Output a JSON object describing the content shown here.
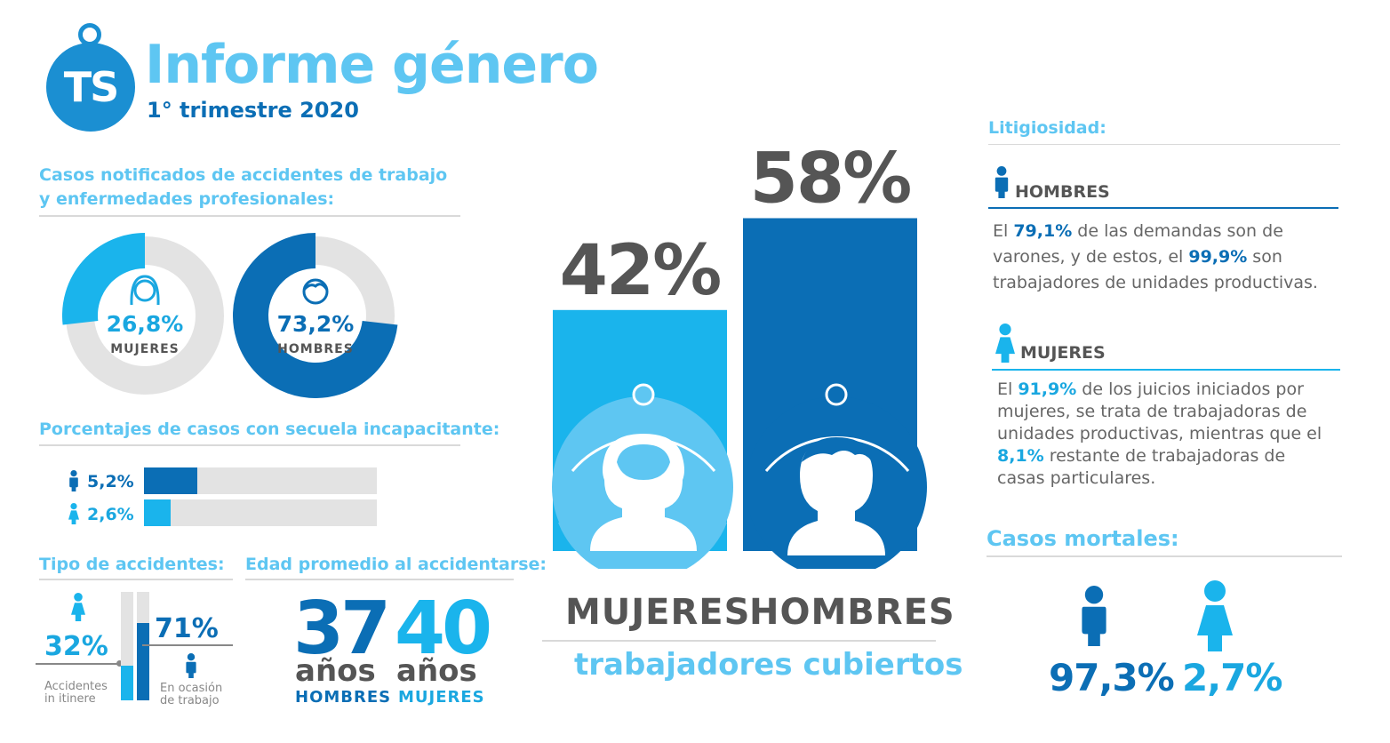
{
  "header": {
    "logo": "TS",
    "title": "Informe género",
    "subtitle": "1° trimestre 2020"
  },
  "colors": {
    "light_blue": "#1ab4ec",
    "dark_blue": "#0b6eb5",
    "title_blue": "#5ec6f2",
    "grey_track": "#e3e3e3",
    "text_grey": "#555555"
  },
  "casos": {
    "title_line1": "Casos notificados de accidentes de trabajo",
    "title_line2": "y enfermedades profesionales:",
    "mujeres": {
      "pct": "26,8%",
      "label": "MUJERES",
      "value": 26.8,
      "icon": "woman-face-icon"
    },
    "hombres": {
      "pct": "73,2%",
      "label": "HOMBRES",
      "value": 73.2,
      "icon": "man-face-icon"
    }
  },
  "secuela": {
    "title": "Porcentajes de casos con secuela incapacitante:",
    "hombres": {
      "pct": "5,2%",
      "value": 5.2,
      "icon": "man-icon"
    },
    "mujeres": {
      "pct": "2,6%",
      "value": 2.6,
      "icon": "woman-icon"
    }
  },
  "tipo": {
    "title": "Tipo de accidentes:",
    "itinere": {
      "pct": "32%",
      "value": 32,
      "line1": "Accidentes",
      "line2": "in itinere",
      "icon": "woman-icon"
    },
    "ocasion": {
      "pct": "71%",
      "value": 71,
      "line1": "En ocasión",
      "line2": "de trabajo",
      "icon": "man-icon"
    }
  },
  "edad": {
    "title": "Edad promedio al accidentarse:",
    "hombres": {
      "num": "37",
      "word": "años",
      "sex": "HOMBRES"
    },
    "mujeres": {
      "num": "40",
      "word": "años",
      "sex": "MUJERES"
    }
  },
  "chart_data": {
    "type": "bar",
    "categories": [
      "MUJERES",
      "HOMBRES"
    ],
    "values": [
      42,
      58
    ],
    "value_labels": [
      "42%",
      "58%"
    ],
    "title": "",
    "xlabel": "trabajadores cubiertos",
    "ylabel": "",
    "ylim": [
      0,
      100
    ]
  },
  "litigiosidad": {
    "title": "Litigiosidad:",
    "hombres": {
      "head": "HOMBRES",
      "t1": "El ",
      "b1": "79,1%",
      "t2": " de las demandas son de varones, y de estos, el ",
      "b2": "99,9%",
      "t3": " son trabajadores de unidades productivas."
    },
    "mujeres": {
      "head": "MUJERES",
      "t1": "El ",
      "b1": "91,9%",
      "t2": " de los juicios iniciados por mujeres, se trata de trabajadoras de unidades productivas, mientras que el ",
      "b2": "8,1%",
      "t3": " restante de trabajadoras de casas particulares."
    }
  },
  "mortales": {
    "title": "Casos mortales:",
    "hombres": {
      "pct": "97,3%",
      "icon": "man-icon"
    },
    "mujeres": {
      "pct": "2,7%",
      "icon": "woman-icon"
    }
  }
}
